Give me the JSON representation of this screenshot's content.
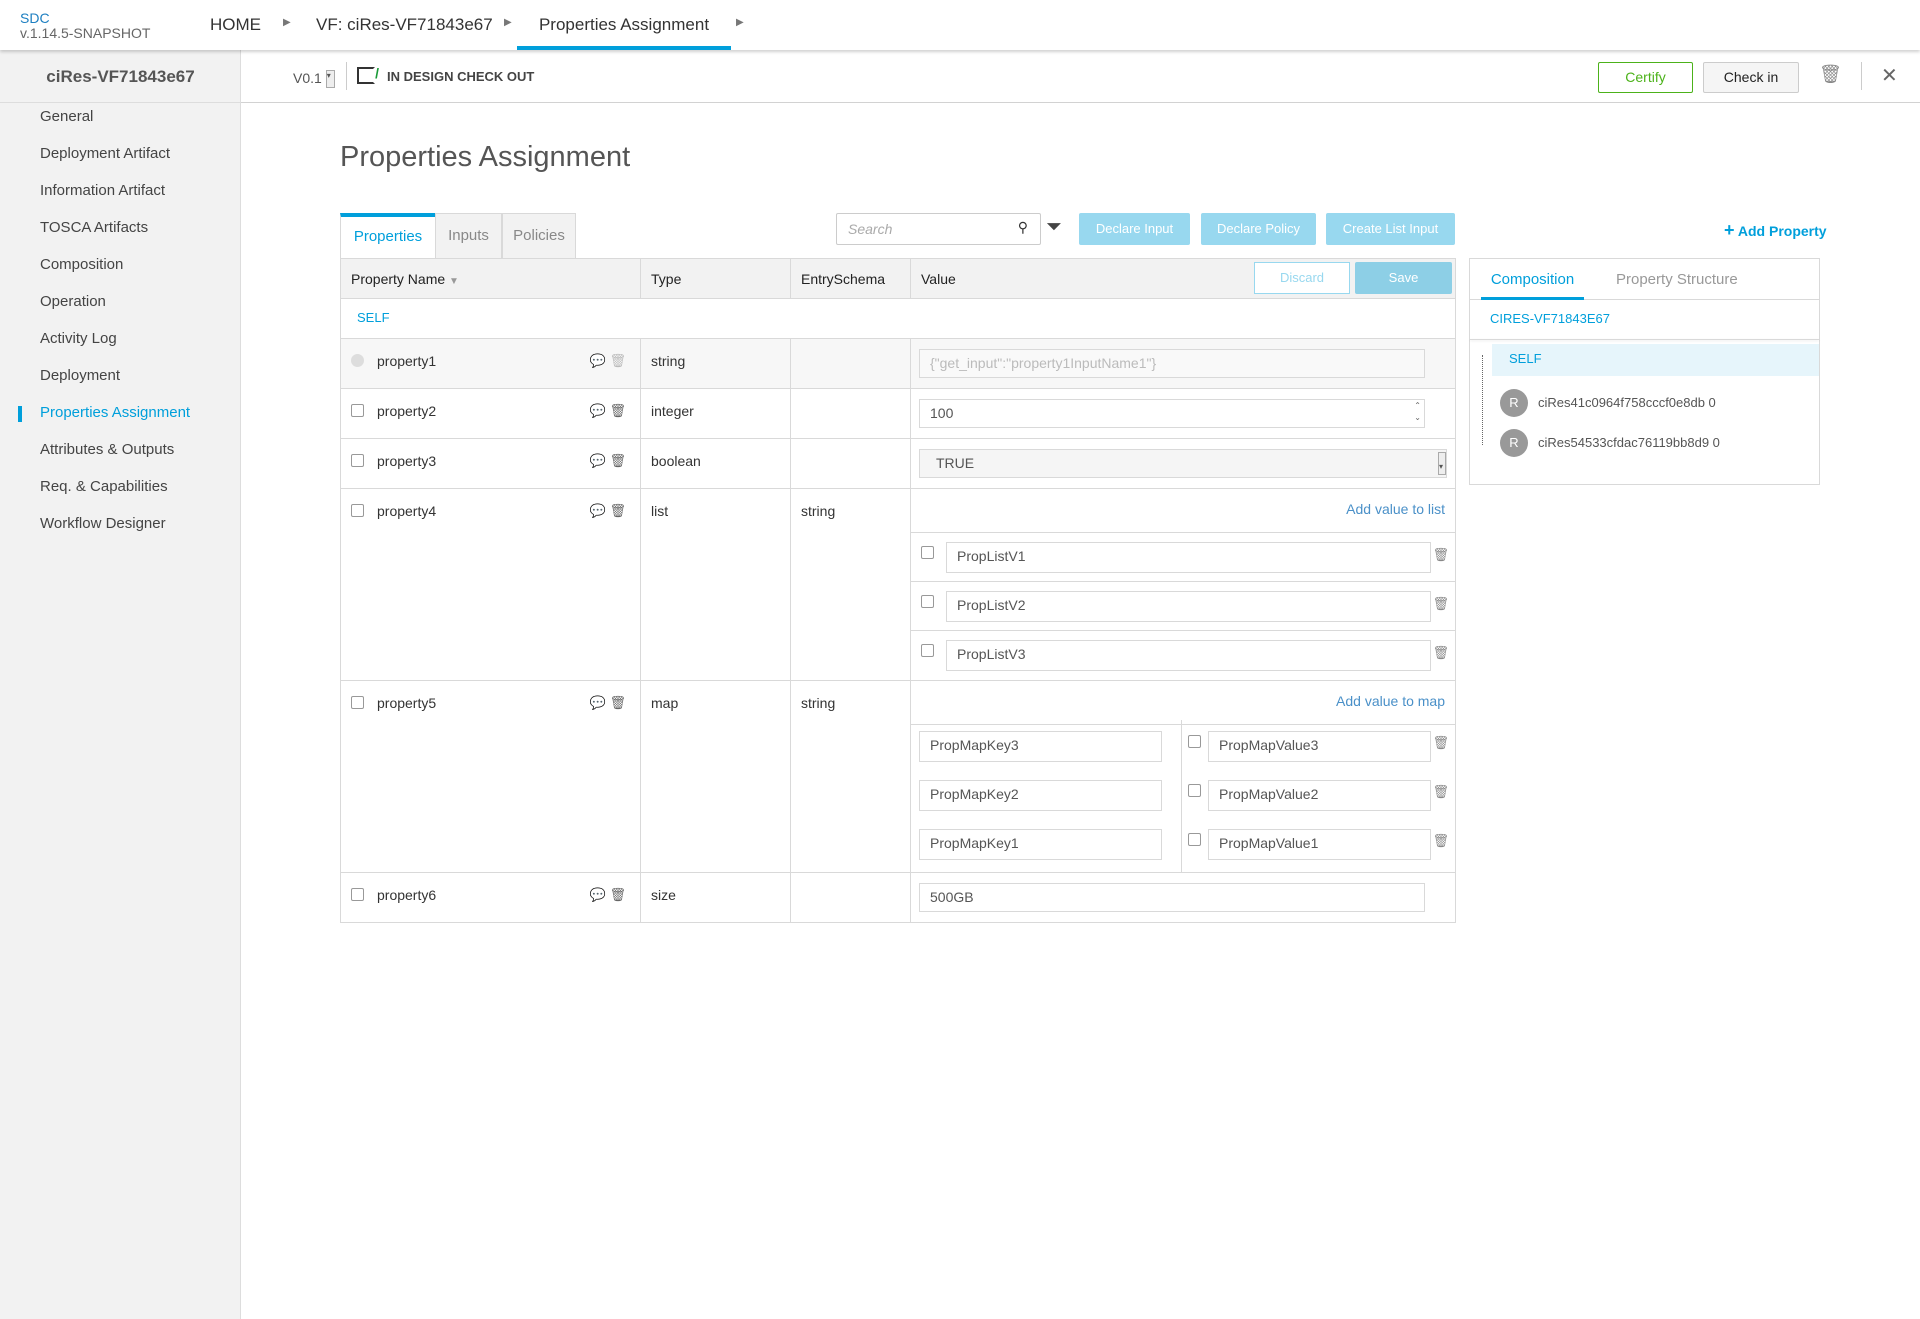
{
  "app": {
    "brand": "SDC",
    "version": "v.1.14.5-SNAPSHOT"
  },
  "breadcrumb": [
    "HOME",
    "VF: ciRes-VF71843e67",
    "Properties Assignment"
  ],
  "sidebar": {
    "title": "ciRes-VF71843e67",
    "items": [
      "General",
      "Deployment Artifact",
      "Information Artifact",
      "TOSCA Artifacts",
      "Composition",
      "Operation",
      "Activity Log",
      "Deployment",
      "Properties Assignment",
      "Attributes & Outputs",
      "Req. & Capabilities",
      "Workflow Designer"
    ],
    "selected": "Properties Assignment"
  },
  "subbar": {
    "version": "V0.1",
    "status": "IN DESIGN CHECK OUT",
    "certify": "Certify",
    "checkin": "Check in"
  },
  "page": {
    "title": "Properties Assignment",
    "tabs": [
      "Properties",
      "Inputs",
      "Policies"
    ],
    "search_placeholder": "Search",
    "declare_input": "Declare Input",
    "declare_policy": "Declare Policy",
    "create_list_input": "Create List Input",
    "add_property": "Add Property"
  },
  "table": {
    "headers": [
      "Property Name",
      "Type",
      "EntrySchema",
      "Value"
    ],
    "discard": "Discard",
    "save": "Save",
    "group": "SELF",
    "add_list": "Add value to list",
    "add_map": "Add value to map",
    "rows": [
      {
        "name": "property1",
        "type": "string",
        "schema": "",
        "value": "{\"get_input\":\"property1InputName1\"}"
      },
      {
        "name": "property2",
        "type": "integer",
        "schema": "",
        "value": "100"
      },
      {
        "name": "property3",
        "type": "boolean",
        "schema": "",
        "value": "TRUE"
      },
      {
        "name": "property4",
        "type": "list",
        "schema": "string",
        "list": [
          "PropListV1",
          "PropListV2",
          "PropListV3"
        ]
      },
      {
        "name": "property5",
        "type": "map",
        "schema": "string",
        "map": [
          [
            "PropMapKey3",
            "PropMapValue3"
          ],
          [
            "PropMapKey2",
            "PropMapValue2"
          ],
          [
            "PropMapKey1",
            "PropMapValue1"
          ]
        ]
      },
      {
        "name": "property6",
        "type": "size",
        "schema": "",
        "value": "500GB"
      }
    ]
  },
  "right": {
    "tabs": [
      "Composition",
      "Property Structure"
    ],
    "root": "CIRES-VF71843E67",
    "self": "SELF",
    "instances": [
      {
        "badge": "R",
        "name": "ciRes41c0964f758cccf0e8db 0"
      },
      {
        "badge": "R",
        "name": "ciRes54533cfdac76119bb8d9 0"
      }
    ]
  },
  "colors": {
    "accent": "#009fdb",
    "certify": "#4cb21a",
    "primary_disabled": "#98d8ef"
  }
}
